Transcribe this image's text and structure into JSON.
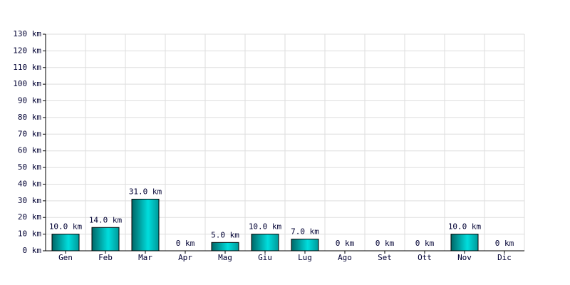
{
  "chart_data": {
    "type": "bar",
    "categories": [
      "Gen",
      "Feb",
      "Mar",
      "Apr",
      "Mag",
      "Giu",
      "Lug",
      "Ago",
      "Set",
      "Ott",
      "Nov",
      "Dic"
    ],
    "values": [
      10,
      14,
      31,
      0,
      5,
      10,
      7,
      0,
      0,
      0,
      10,
      0
    ],
    "value_labels": [
      "10.0 km",
      "14.0 km",
      "31.0 km",
      "0 km",
      "5.0 km",
      "10.0 km",
      "7.0 km",
      "0 km",
      "0 km",
      "0 km",
      "10.0 km",
      "0 km"
    ],
    "color": "#00dddd",
    "ylim": [
      0,
      130
    ],
    "yticks": [
      {
        "value": 0,
        "label": "0 km"
      },
      {
        "value": 10,
        "label": "10 km"
      },
      {
        "value": 20,
        "label": "20 km"
      },
      {
        "value": 30,
        "label": "30 km"
      },
      {
        "value": 40,
        "label": "40 km"
      },
      {
        "value": 50,
        "label": "50 km"
      },
      {
        "value": 60,
        "label": "60 km"
      },
      {
        "value": 70,
        "label": "70 km"
      },
      {
        "value": 80,
        "label": "80 km"
      },
      {
        "value": 90,
        "label": "90 km"
      },
      {
        "value": 100,
        "label": "100 km"
      },
      {
        "value": 110,
        "label": "110 km"
      },
      {
        "value": 120,
        "label": "120 km"
      },
      {
        "value": 130,
        "label": "130 km"
      }
    ],
    "grid": true
  }
}
